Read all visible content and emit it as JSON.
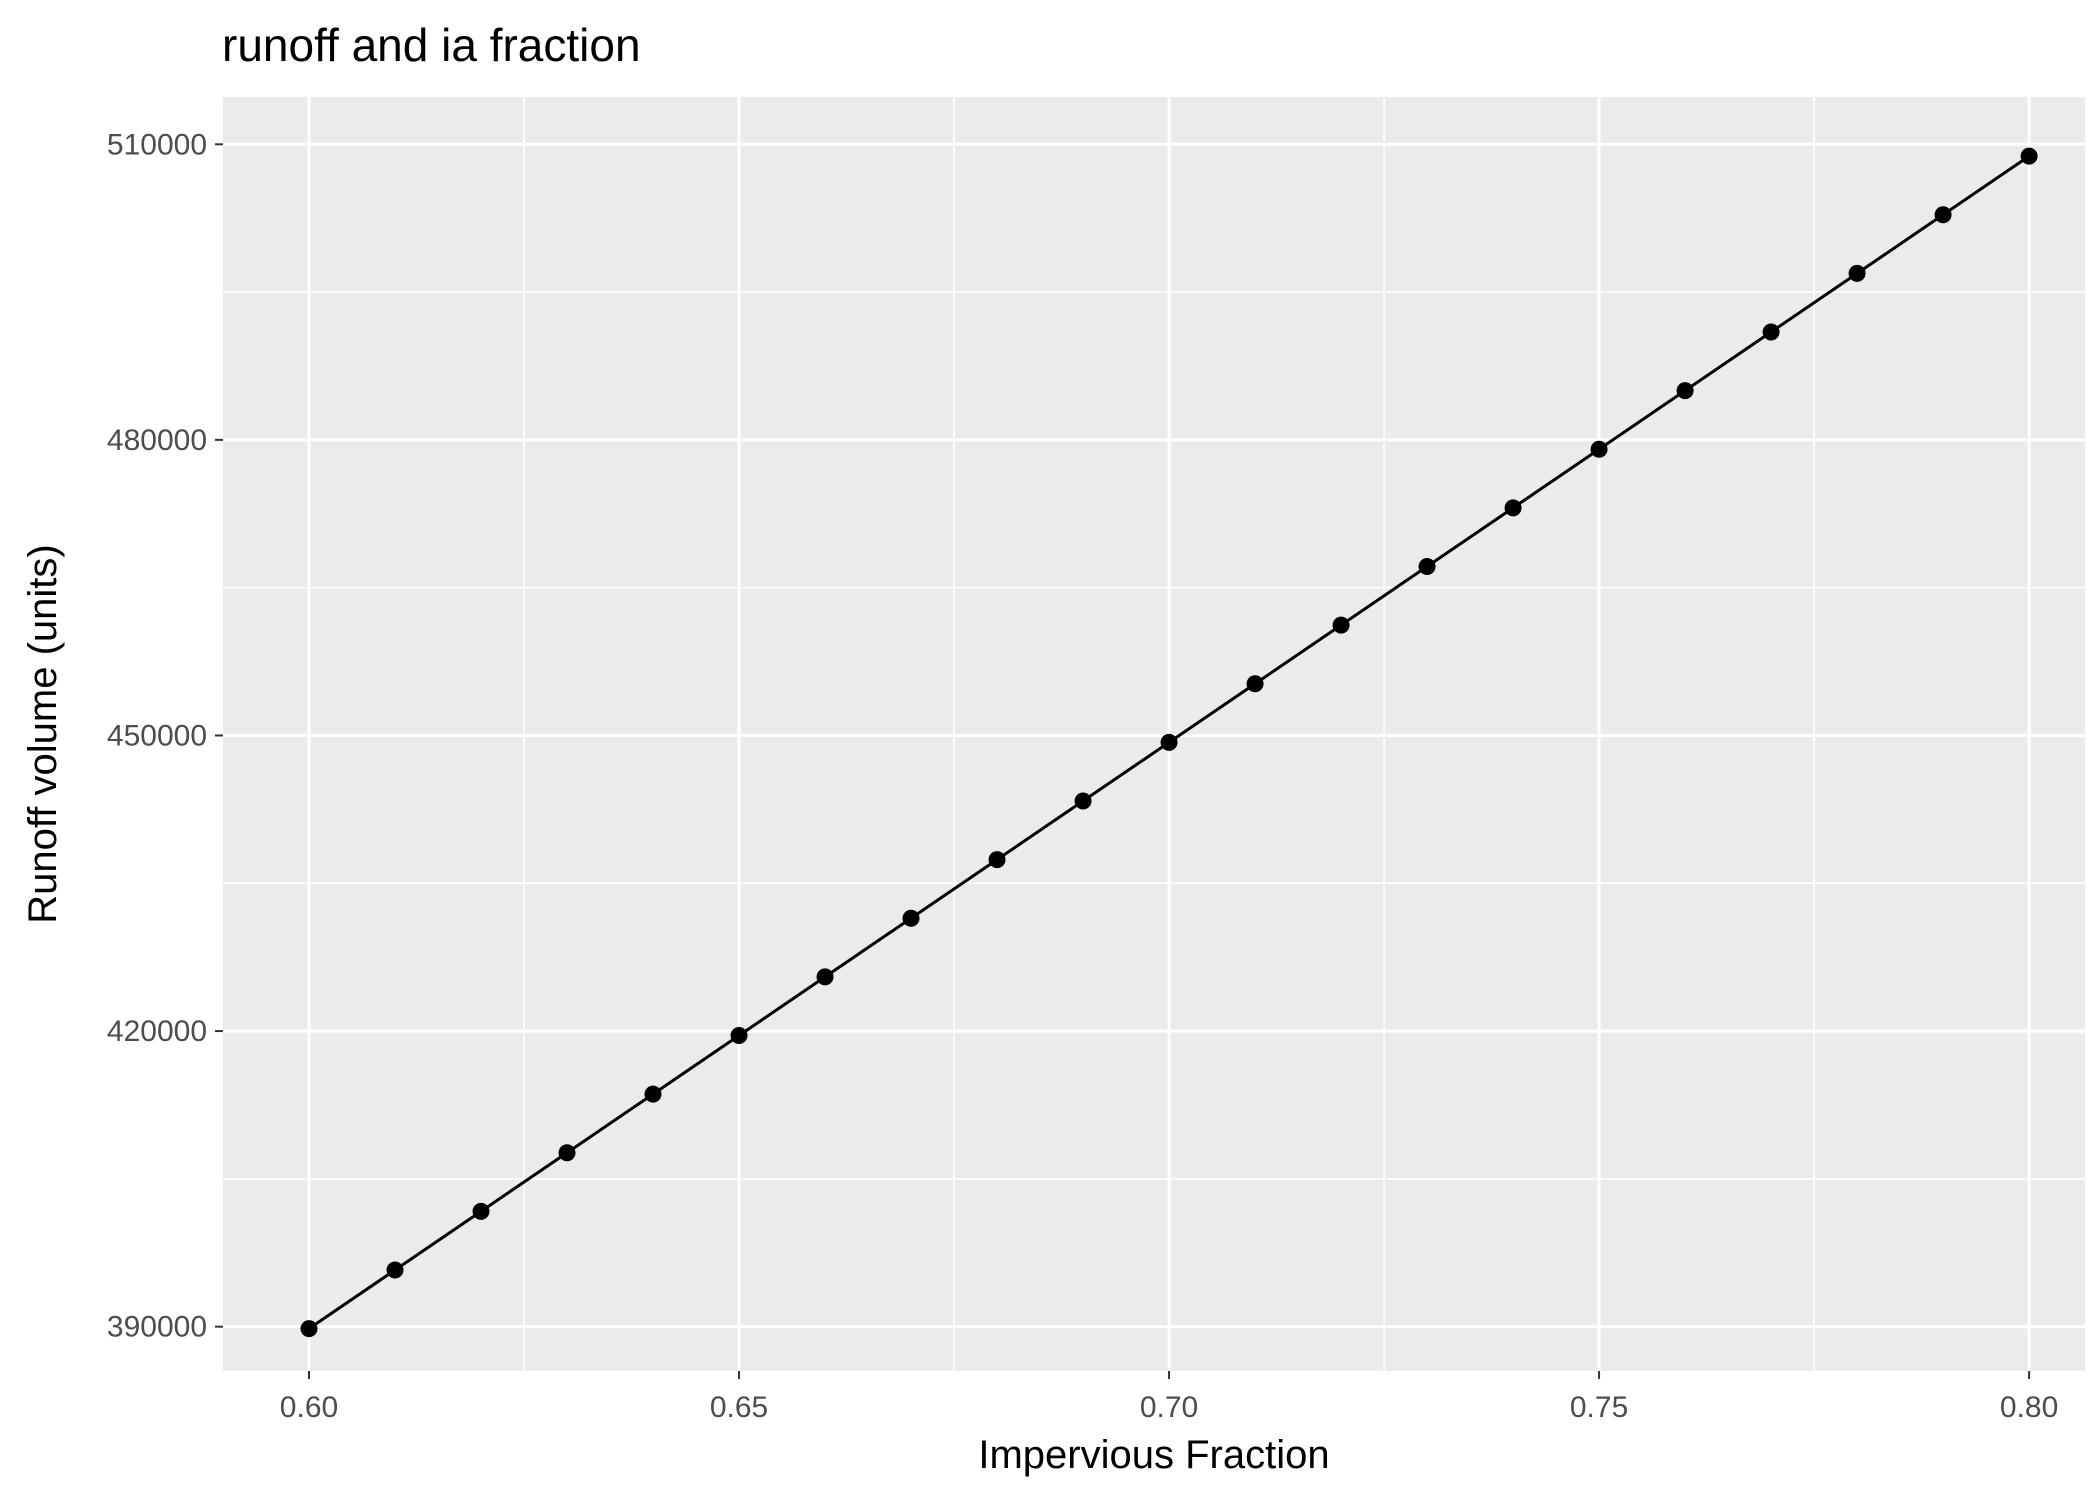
{
  "chart_data": {
    "type": "line",
    "title": "runoff and ia fraction",
    "xlabel": "Impervious Fraction",
    "ylabel": "Runoff volume (units)",
    "xlim": [
      0.59,
      0.8065
    ],
    "ylim": [
      385500,
      514800
    ],
    "x_ticks": [
      0.6,
      0.65,
      0.7,
      0.75,
      0.8
    ],
    "x_tick_labels": [
      "0.60",
      "0.65",
      "0.70",
      "0.75",
      "0.80"
    ],
    "y_ticks": [
      390000,
      420000,
      450000,
      480000,
      510000
    ],
    "y_tick_labels": [
      "390000",
      "420000",
      "450000",
      "480000",
      "510000"
    ],
    "grid": true,
    "legend": "none",
    "colors": {
      "panel": "#ebebeb",
      "grid": "#ffffff",
      "series": "#000000"
    },
    "series": [
      {
        "x": [
          0.6,
          0.61,
          0.62,
          0.63,
          0.64,
          0.65,
          0.66,
          0.67,
          0.68,
          0.69,
          0.7,
          0.71,
          0.72,
          0.73,
          0.74,
          0.75,
          0.76,
          0.77,
          0.78,
          0.79,
          0.8
        ],
        "values": [
          389800,
          395750,
          401700,
          407650,
          413600,
          419550,
          425500,
          431450,
          437400,
          443350,
          449300,
          455250,
          461200,
          467150,
          473100,
          479050,
          485000,
          490950,
          496900,
          502850,
          508800
        ]
      }
    ]
  }
}
